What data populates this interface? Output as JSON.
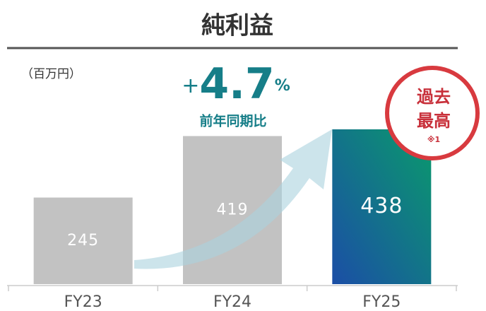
{
  "chart_data": {
    "type": "bar",
    "title": "純利益",
    "unit_label": "（百万円）",
    "categories": [
      "FY23",
      "FY24",
      "FY25"
    ],
    "values": [
      245,
      419,
      438
    ],
    "colors": [
      "#c2c2c2",
      "#c2c2c2",
      [
        "#1b4ea6",
        "#0a9a6c"
      ]
    ],
    "annotation": {
      "sign": "+",
      "number": "4.7",
      "unit": "%",
      "label": "前年同期比"
    },
    "badge": {
      "lines": [
        "過去",
        "最高"
      ],
      "note": "※1"
    }
  }
}
